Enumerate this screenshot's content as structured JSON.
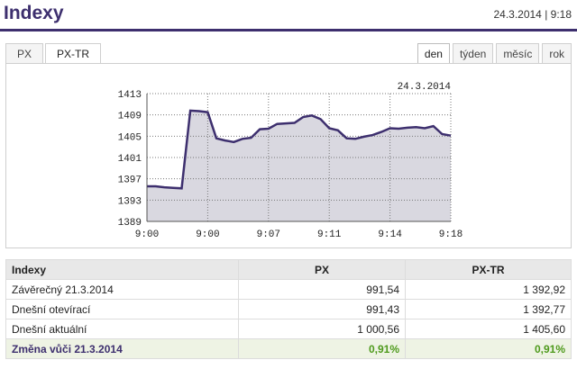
{
  "header": {
    "title": "Indexy",
    "timestamp": "24.3.2014 | 9:18"
  },
  "index_tabs": [
    {
      "label": "PX",
      "active": false
    },
    {
      "label": "PX-TR",
      "active": true
    }
  ],
  "period_tabs": [
    {
      "label": "den",
      "active": true
    },
    {
      "label": "týden",
      "active": false
    },
    {
      "label": "měsíc",
      "active": false
    },
    {
      "label": "rok",
      "active": false
    }
  ],
  "chart_data": {
    "type": "area",
    "title": "",
    "date_label": "24.3.2014",
    "xlabel": "",
    "ylabel": "",
    "x_tick_labels": [
      "9:00",
      "9:00",
      "9:07",
      "9:11",
      "9:14",
      "9:18"
    ],
    "y_ticks": [
      1389,
      1393,
      1397,
      1401,
      1405,
      1409,
      1413
    ],
    "ylim": [
      1389,
      1413
    ],
    "grid": true,
    "colors": {
      "line": "#3d2f6e",
      "fill": "#d9d8e0"
    },
    "series": [
      {
        "values": [
          1395.6,
          1395.6,
          1395.4,
          1395.3,
          1395.2,
          1409.8,
          1409.7,
          1409.5,
          1404.6,
          1404.2,
          1403.9,
          1404.5,
          1404.7,
          1406.3,
          1406.4,
          1407.3,
          1407.4,
          1407.5,
          1408.6,
          1408.9,
          1408.2,
          1406.5,
          1406.1,
          1404.6,
          1404.5,
          1404.9,
          1405.2,
          1405.8,
          1406.5,
          1406.4,
          1406.6,
          1406.7,
          1406.5,
          1406.9,
          1405.4,
          1405.1
        ]
      }
    ]
  },
  "table": {
    "headers": [
      "Indexy",
      "PX",
      "PX-TR"
    ],
    "rows": [
      [
        "Závěrečný 21.3.2014",
        "991,54",
        "1 392,92"
      ],
      [
        "Dnešní otevírací",
        "991,43",
        "1 392,77"
      ],
      [
        "Dnešní aktuální",
        "1 000,56",
        "1 405,60"
      ]
    ],
    "change": [
      "Změna vůči 21.3.2014",
      "0,91%",
      "0,91%"
    ]
  }
}
